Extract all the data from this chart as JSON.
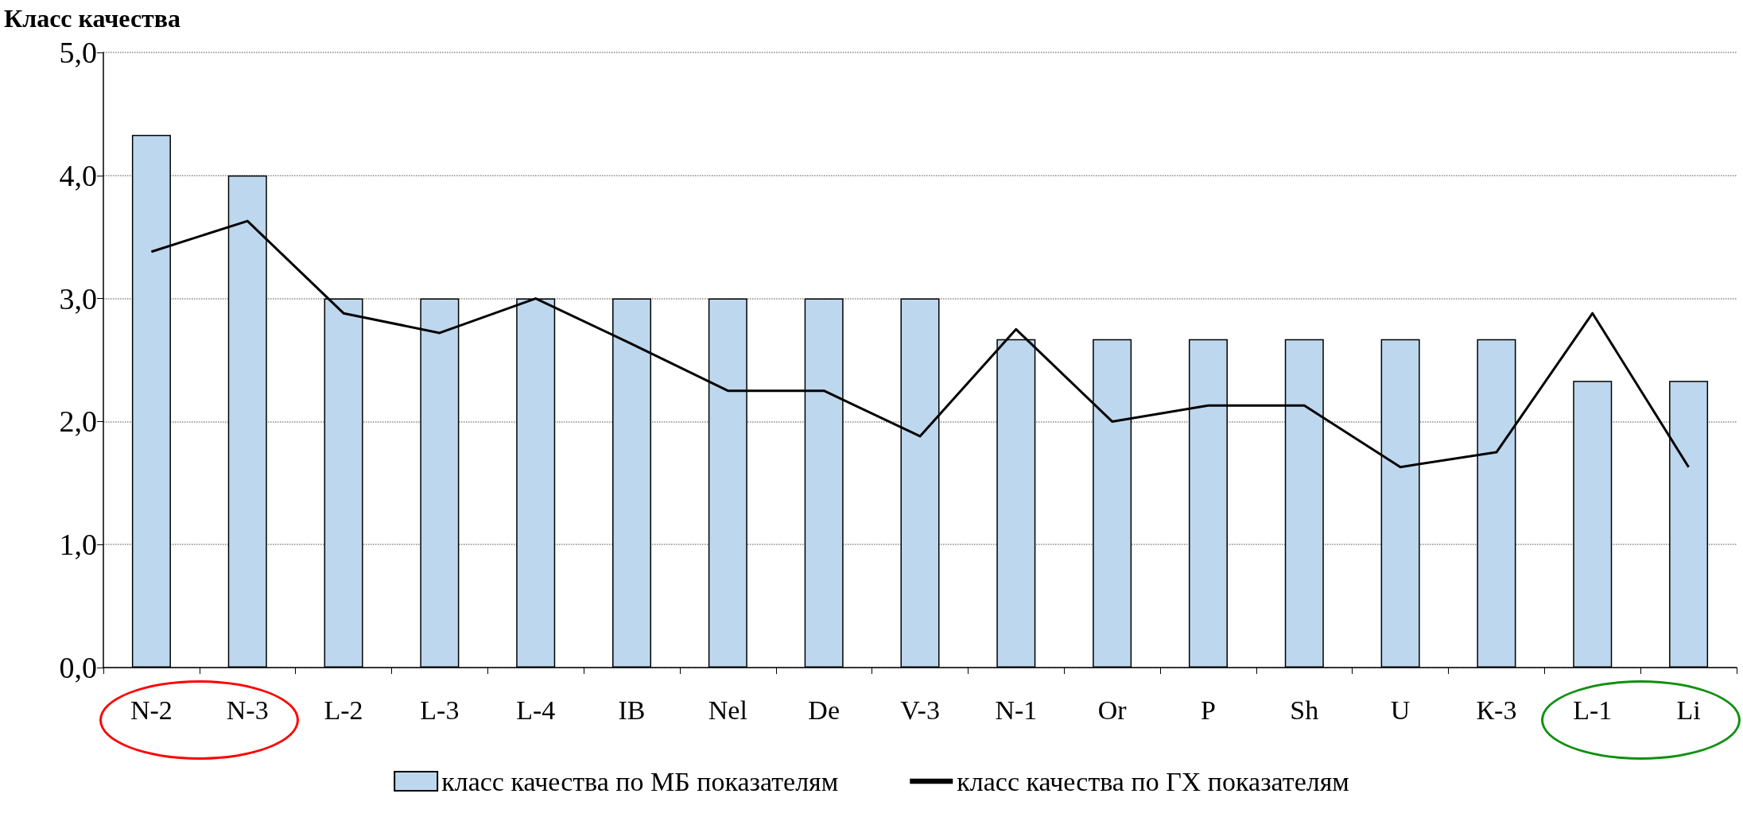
{
  "chart_data": {
    "type": "bar",
    "ylabel": "Класс качества",
    "categories": [
      "N-2",
      "N-3",
      "L-2",
      "L-3",
      "L-4",
      "IB",
      "Nel",
      "De",
      "V-3",
      "N-1",
      "Or",
      "P",
      "Sh",
      "U",
      "К-3",
      "L-1",
      "Li"
    ],
    "series": [
      {
        "name": "класс качества по МБ показателям",
        "color": "#bdd7ee",
        "values": [
          4.33,
          4.0,
          3.0,
          3.0,
          3.0,
          3.0,
          3.0,
          3.0,
          3.0,
          2.67,
          2.67,
          2.67,
          2.67,
          2.67,
          2.67,
          2.33,
          2.33
        ]
      },
      {
        "name": "класс качества по ГХ показателям",
        "type": "line",
        "color": "#000000",
        "values": [
          3.38,
          3.63,
          2.88,
          2.72,
          3.0,
          2.63,
          2.25,
          2.25,
          1.88,
          2.75,
          2.0,
          2.13,
          2.13,
          1.63,
          1.75,
          2.88,
          1.63
        ]
      }
    ],
    "ylim": [
      0,
      5
    ],
    "yticks": [
      {
        "value": 0,
        "label": "0,0"
      },
      {
        "value": 1,
        "label": "1,0"
      },
      {
        "value": 2,
        "label": "2,0"
      },
      {
        "value": 3,
        "label": "3,0"
      },
      {
        "value": 4,
        "label": "4,0"
      },
      {
        "value": 5,
        "label": "5,0"
      }
    ],
    "grid": "y",
    "legend": "bottom",
    "marker": "none",
    "line_style": "solid"
  }
}
